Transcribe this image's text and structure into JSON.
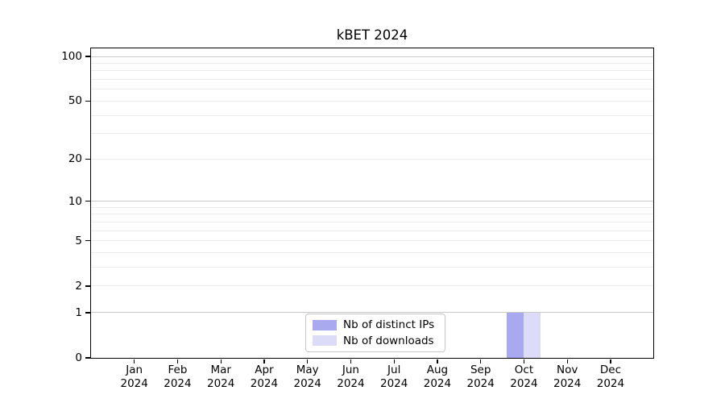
{
  "chart_data": {
    "type": "bar",
    "title": "kBET 2024",
    "categories": [
      "Jan",
      "Feb",
      "Mar",
      "Apr",
      "May",
      "Jun",
      "Jul",
      "Aug",
      "Sep",
      "Oct",
      "Nov",
      "Dec"
    ],
    "year_label": "2024",
    "series": [
      {
        "name": "Nb of distinct IPs",
        "color": "#a9a9f0",
        "values": [
          0,
          0,
          0,
          0,
          0,
          0,
          0,
          0,
          0,
          1,
          0,
          0
        ]
      },
      {
        "name": "Nb of downloads",
        "color": "#dcdcf8",
        "values": [
          0,
          0,
          0,
          0,
          0,
          0,
          0,
          0,
          0,
          1,
          0,
          0
        ]
      }
    ],
    "y_axis": {
      "scale": "log10(1+x)",
      "tick_values": [
        0,
        1,
        2,
        5,
        10,
        20,
        50,
        100
      ],
      "tick_labels": [
        "0",
        "1",
        "2",
        "5",
        "10",
        "20",
        "50",
        "100"
      ],
      "major_gridline_values": [
        1,
        10,
        100
      ],
      "minor_gridline_values": [
        2,
        3,
        4,
        5,
        6,
        7,
        8,
        9,
        20,
        30,
        40,
        50,
        60,
        70,
        80,
        90
      ],
      "top_value": 115
    },
    "legend": {
      "entries": [
        "Nb of distinct IPs",
        "Nb of downloads"
      ],
      "position": "bottom-center"
    },
    "grid": {
      "major_color": "#c8c8c8",
      "minor_color": "#ececec"
    },
    "axis_color": "#000000",
    "background": "#ffffff"
  }
}
